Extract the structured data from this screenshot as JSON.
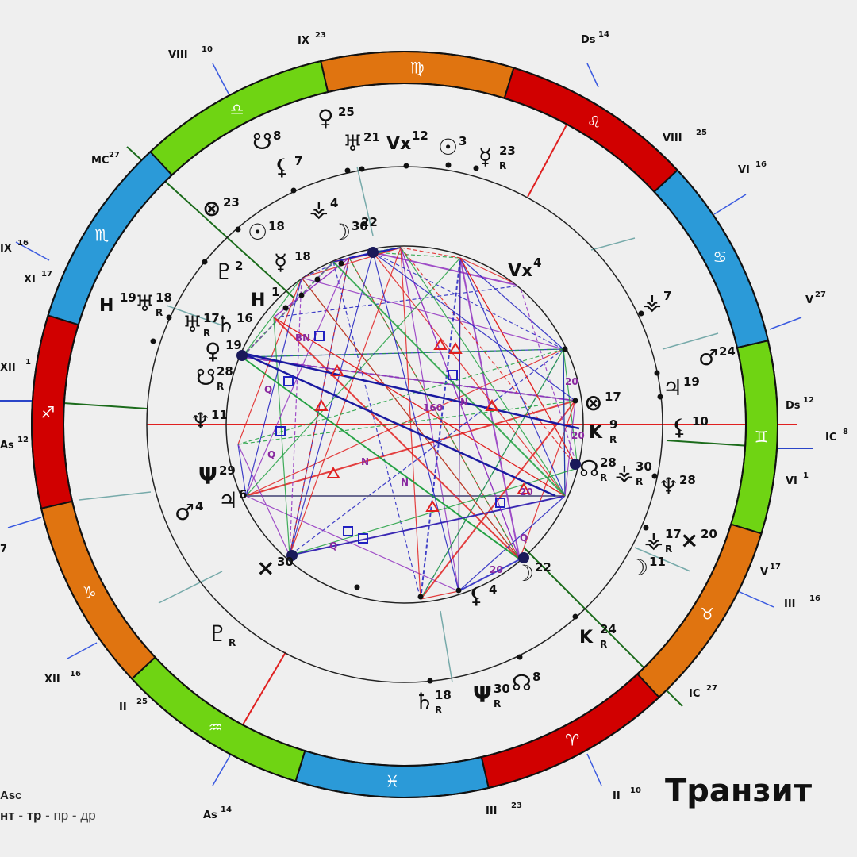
{
  "title": "Транзит",
  "legend": {
    "line1": "Asc",
    "items": [
      "нт",
      "тр",
      "пр",
      "др"
    ]
  },
  "colors": {
    "fire": "#d10000",
    "earth": "#e07410",
    "air": "#6fd413",
    "water": "#2b9ad8",
    "trine": "#e02020",
    "square": "#2020c0",
    "sextile": "#20a040",
    "minor": "#9030c0"
  },
  "zodiac": [
    {
      "sign": "scorpio",
      "glyph": "♏",
      "element": "water"
    },
    {
      "sign": "libra",
      "glyph": "♎",
      "element": "air"
    },
    {
      "sign": "virgo",
      "glyph": "♍",
      "element": "earth"
    },
    {
      "sign": "leo",
      "glyph": "♌",
      "element": "fire"
    },
    {
      "sign": "cancer",
      "glyph": "♋",
      "element": "water"
    },
    {
      "sign": "gemini",
      "glyph": "♊",
      "element": "air"
    },
    {
      "sign": "taurus",
      "glyph": "♉",
      "element": "earth"
    },
    {
      "sign": "aries",
      "glyph": "♈",
      "element": "fire"
    },
    {
      "sign": "pisces",
      "glyph": "♓",
      "element": "water"
    },
    {
      "sign": "aquarius",
      "glyph": "♒",
      "element": "air"
    },
    {
      "sign": "capricorn",
      "glyph": "♑",
      "element": "earth"
    },
    {
      "sign": "sagittarius",
      "glyph": "♐",
      "element": "fire"
    }
  ],
  "outer_labels": [
    {
      "text": "IX",
      "sup": "23"
    },
    {
      "text": "Ds",
      "sup": "14"
    },
    {
      "text": "VIII",
      "sup": "25"
    },
    {
      "text": "VI",
      "sup": "16"
    },
    {
      "text": "V",
      "sup": "27"
    },
    {
      "text": "Ds",
      "sup": "12"
    },
    {
      "text": "IC",
      "sup": "8"
    },
    {
      "text": "VI",
      "sup": "1"
    },
    {
      "text": "V",
      "sup": "17"
    },
    {
      "text": "III",
      "sup": "16"
    },
    {
      "text": "IC",
      "sup": "27"
    },
    {
      "text": "II",
      "sup": "10"
    },
    {
      "text": "III",
      "sup": "23"
    },
    {
      "text": "As",
      "sup": "14"
    },
    {
      "text": "II",
      "sup": "25"
    },
    {
      "text": "XII",
      "sup": "16"
    },
    {
      "text": "7",
      "sup": ""
    },
    {
      "text": "As",
      "sup": "12"
    },
    {
      "text": "XII",
      "sup": "1"
    },
    {
      "text": "XI",
      "sup": "17"
    },
    {
      "text": "IX",
      "sup": "16"
    },
    {
      "text": "MC",
      "sup": "27"
    },
    {
      "text": "VIII",
      "sup": "10"
    }
  ],
  "outer_planets": [
    {
      "glyph": "♀",
      "deg": "25"
    },
    {
      "glyph": "☋",
      "deg": "8"
    },
    {
      "glyph": "⚸",
      "deg": "7"
    },
    {
      "glyph": "♅",
      "deg": "21"
    },
    {
      "glyph": "Vx",
      "deg": "12"
    },
    {
      "glyph": "☉",
      "deg": "3"
    },
    {
      "glyph": "☿",
      "deg": "23",
      "r": "R"
    },
    {
      "glyph": "⊗",
      "deg": "23"
    },
    {
      "glyph": "☉",
      "deg": "18"
    },
    {
      "glyph": "⚶",
      "deg": "4"
    },
    {
      "glyph": "☽",
      "deg": "30"
    },
    {
      "glyph": "",
      "deg": "22"
    },
    {
      "glyph": "☿",
      "deg": "18"
    },
    {
      "glyph": "Vx",
      "deg": "4"
    },
    {
      "glyph": "♇",
      "deg": "2"
    },
    {
      "glyph": "H",
      "deg": "1"
    },
    {
      "glyph": "H",
      "deg": "19"
    },
    {
      "glyph": "♅",
      "deg": "18",
      "r": "R"
    },
    {
      "glyph": "♅",
      "deg": "17",
      "r": "R"
    },
    {
      "glyph": "♄",
      "deg": "16"
    },
    {
      "glyph": "♀",
      "deg": "19"
    },
    {
      "glyph": "☋",
      "deg": "28",
      "r": "R"
    },
    {
      "glyph": "♆",
      "deg": "11"
    },
    {
      "glyph": "⚶",
      "deg": "7"
    },
    {
      "glyph": "♂",
      "deg": "24"
    },
    {
      "glyph": "♃",
      "deg": "19"
    },
    {
      "glyph": "⊗",
      "deg": "17"
    },
    {
      "glyph": "K",
      "deg": "9",
      "r": "R"
    },
    {
      "glyph": "⚸",
      "deg": "10"
    },
    {
      "glyph": "☊",
      "deg": "28",
      "r": "R"
    },
    {
      "glyph": "⚶",
      "deg": "30",
      "r": "R"
    },
    {
      "glyph": "♆",
      "deg": "28"
    },
    {
      "glyph": "Ψ",
      "deg": "29"
    },
    {
      "glyph": "♂",
      "deg": "4"
    },
    {
      "glyph": "♃",
      "deg": "6"
    },
    {
      "glyph": "⚶",
      "deg": "17",
      "r": "R"
    },
    {
      "glyph": "×",
      "deg": "20"
    },
    {
      "glyph": "☽",
      "deg": "11"
    },
    {
      "glyph": "×",
      "deg": "30"
    },
    {
      "glyph": "☽",
      "deg": "22"
    },
    {
      "glyph": "⚸",
      "deg": "4"
    },
    {
      "glyph": "♇",
      "deg": "",
      "r": "R"
    },
    {
      "glyph": "K",
      "deg": "24",
      "r": "R"
    },
    {
      "glyph": "♄",
      "deg": "18",
      "r": "R"
    },
    {
      "glyph": "Ψ",
      "deg": "30",
      "r": "R"
    },
    {
      "glyph": "☊",
      "deg": "8"
    }
  ],
  "aspect_labels": [
    "BN",
    "160",
    "20",
    "20",
    "20",
    "20",
    "Q",
    "Q",
    "Q",
    "Q",
    "N",
    "N",
    "N"
  ]
}
